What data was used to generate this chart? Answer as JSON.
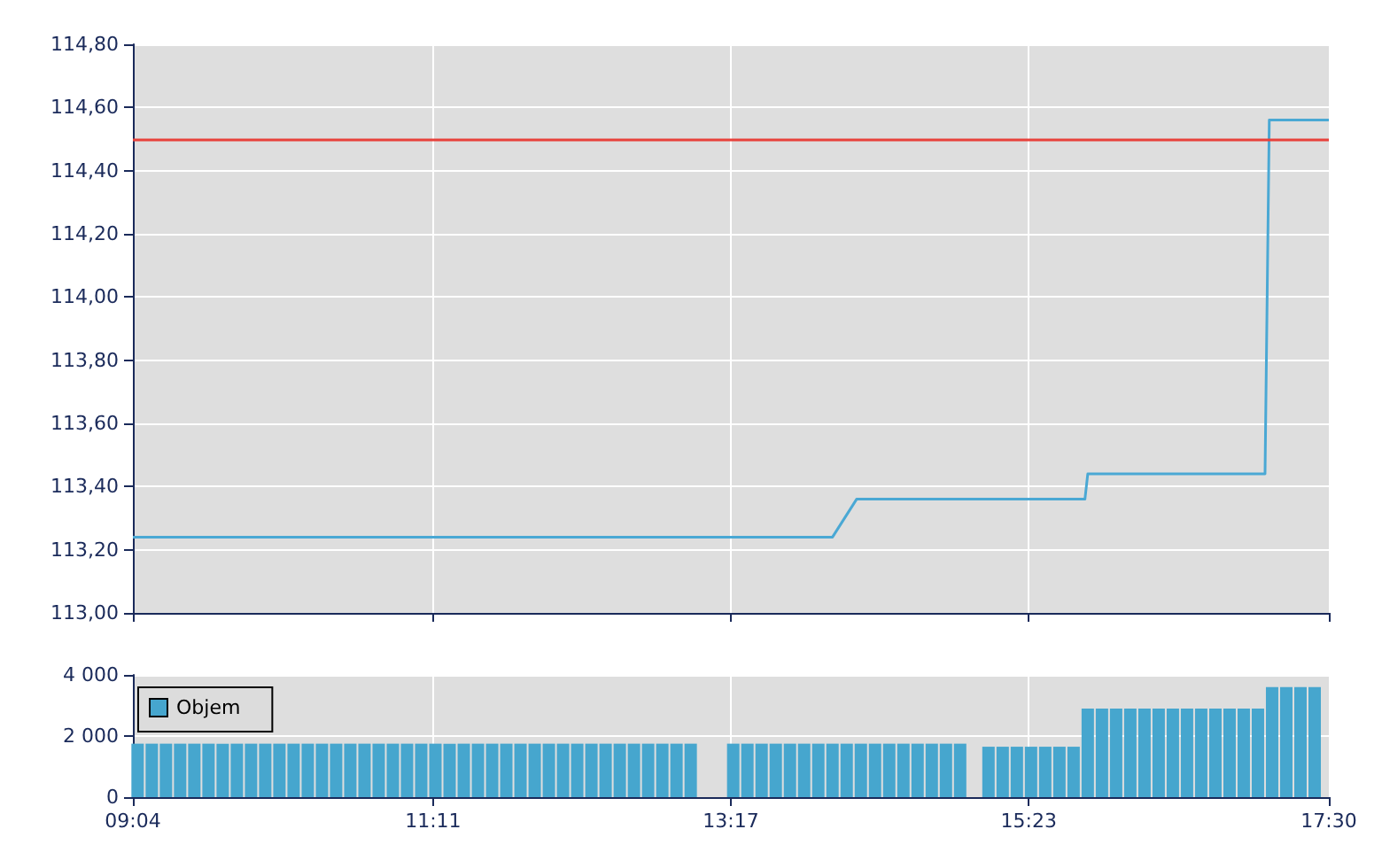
{
  "chart_data": [
    {
      "type": "line",
      "x": [
        9.0667,
        14.0,
        14.17,
        15.78,
        15.8,
        17.05,
        17.08,
        17.5
      ],
      "series": [
        {
          "color": "#4aa8d4",
          "values": [
            113.24,
            113.24,
            113.36,
            113.36,
            113.44,
            113.44,
            114.56,
            114.56
          ]
        }
      ],
      "xlim": [
        9.0667,
        17.5
      ],
      "xticks": [
        {
          "value": 9.0667,
          "label": null
        },
        {
          "value": 11.1833,
          "label": null
        },
        {
          "value": 13.2833,
          "label": null
        },
        {
          "value": 15.3833,
          "label": null
        },
        {
          "value": 17.5,
          "label": null
        }
      ],
      "ylim": [
        113,
        114.8
      ],
      "yticks": [
        {
          "value": 113,
          "label": "113,00"
        },
        {
          "value": 113.2,
          "label": "113,20"
        },
        {
          "value": 113.4,
          "label": "113,40"
        },
        {
          "value": 113.6,
          "label": "113,60"
        },
        {
          "value": 113.8,
          "label": "113,80"
        },
        {
          "value": 114,
          "label": "114,00"
        },
        {
          "value": 114.2,
          "label": "114,20"
        },
        {
          "value": 114.4,
          "label": "114,40"
        },
        {
          "value": 114.6,
          "label": "114,60"
        },
        {
          "value": 114.8,
          "label": "114,80"
        }
      ],
      "ref_lines": [
        {
          "axis": "y",
          "value": 114.5,
          "color": "#e8413a"
        }
      ],
      "grid": true,
      "marker": "none",
      "tick_labels": "y",
      "legend": false
    },
    {
      "type": "bar",
      "x": [
        9.1,
        9.2,
        9.3,
        9.4,
        9.5,
        9.6,
        9.7,
        9.8,
        9.9,
        10.0,
        10.1,
        10.2,
        10.3,
        10.4,
        10.5,
        10.6,
        10.7,
        10.8,
        10.9,
        11.0,
        11.1,
        11.2,
        11.3,
        11.4,
        11.5,
        11.6,
        11.7,
        11.8,
        11.9,
        12.0,
        12.1,
        12.2,
        12.3,
        12.4,
        12.5,
        12.6,
        12.7,
        12.8,
        12.9,
        13.0,
        13.1,
        13.2,
        13.3,
        13.4,
        13.5,
        13.6,
        13.7,
        13.8,
        13.9,
        14.0,
        14.1,
        14.2,
        14.3,
        14.4,
        14.5,
        14.6,
        14.7,
        14.8,
        14.9,
        15.0,
        15.1,
        15.2,
        15.3,
        15.4,
        15.5,
        15.6,
        15.7,
        15.8,
        15.9,
        16.0,
        16.1,
        16.2,
        16.3,
        16.4,
        16.5,
        16.6,
        16.7,
        16.8,
        16.9,
        17.0,
        17.1,
        17.2,
        17.3,
        17.4
      ],
      "series": [
        {
          "name": "Objem",
          "color": "#46a6ce",
          "values": [
            1750,
            1750,
            1750,
            1750,
            1750,
            1750,
            1750,
            1750,
            1750,
            1750,
            1750,
            1750,
            1750,
            1750,
            1750,
            1750,
            1750,
            1750,
            1750,
            1750,
            1750,
            1750,
            1750,
            1750,
            1750,
            1750,
            1750,
            1750,
            1750,
            1750,
            1750,
            1750,
            1750,
            1750,
            1750,
            1750,
            1750,
            1750,
            1750,
            1750,
            null,
            null,
            1750,
            1750,
            1750,
            1750,
            1750,
            1750,
            1750,
            1750,
            1750,
            1750,
            1750,
            1750,
            1750,
            1750,
            1750,
            1750,
            1750,
            null,
            1650,
            1650,
            1650,
            1650,
            1650,
            1650,
            1650,
            2900,
            2900,
            2900,
            2900,
            2900,
            2900,
            2900,
            2900,
            2900,
            2900,
            2900,
            2900,
            2900,
            3600,
            3600,
            3600,
            3600
          ]
        }
      ],
      "xlim": [
        9.0667,
        17.5
      ],
      "xticks": [
        {
          "value": 9.0667,
          "label": "09:04"
        },
        {
          "value": 11.1833,
          "label": "11:11"
        },
        {
          "value": 13.2833,
          "label": "13:17"
        },
        {
          "value": 15.3833,
          "label": "15:23"
        },
        {
          "value": 17.5,
          "label": "17:30"
        }
      ],
      "ylim": [
        0,
        4000
      ],
      "yticks": [
        {
          "value": 0,
          "label": "0"
        },
        {
          "value": 2000,
          "label": "2 000"
        },
        {
          "value": 4000,
          "label": "4 000"
        }
      ],
      "grid": true,
      "legend": "top left"
    }
  ]
}
